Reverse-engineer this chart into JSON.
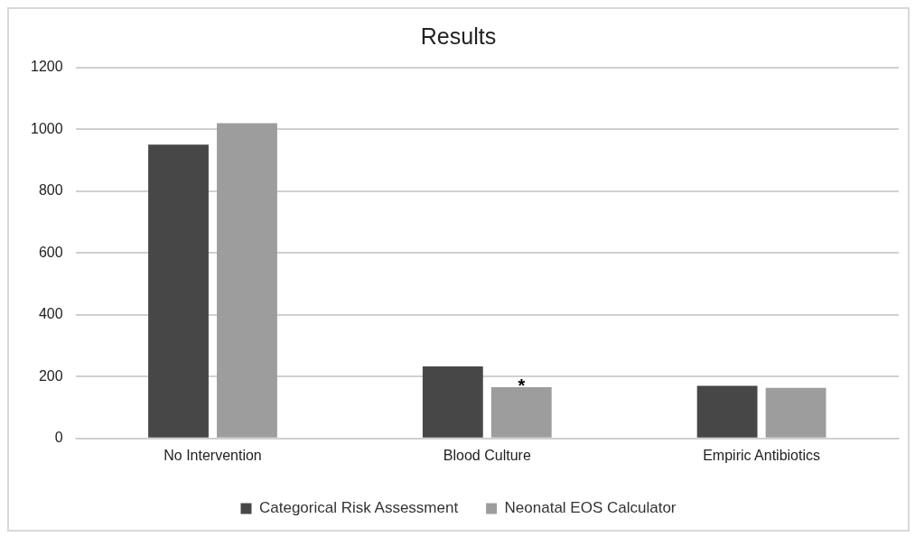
{
  "chart_data": {
    "type": "bar",
    "title": "Results",
    "categories": [
      "No Intervention",
      "Blood Culture",
      "Empiric Antibiotics"
    ],
    "series": [
      {
        "name": "Categorical Risk Assessment",
        "color": "#474747",
        "values": [
          951,
          233,
          170
        ]
      },
      {
        "name": "Neonatal EOS Calculator",
        "color": "#9d9d9d",
        "values": [
          1020,
          166,
          164
        ]
      }
    ],
    "ylim": [
      0,
      1200
    ],
    "yticks": [
      0,
      200,
      400,
      600,
      800,
      1000,
      1200
    ],
    "grid": "y",
    "legend": "bottom",
    "annotations": [
      {
        "text": "*",
        "x": "Blood Culture",
        "y": 166
      }
    ]
  }
}
